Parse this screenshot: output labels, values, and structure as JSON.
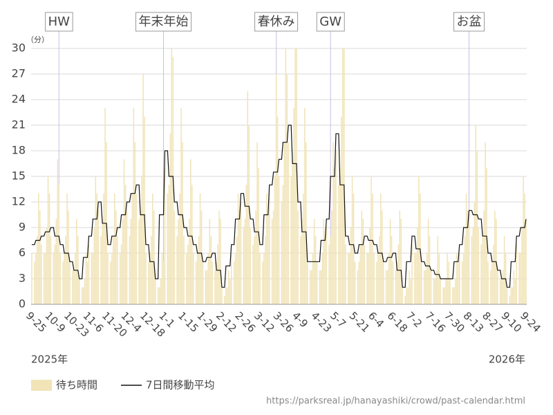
{
  "chart_data": {
    "type": "bar_line",
    "unit_label": "（分）",
    "year_start": "2025年",
    "year_end": "2026年",
    "source": "https://parksreal.jp/hanayashiki/crowd/past-calendar.html",
    "ylim": [
      0,
      30
    ],
    "yticks": [
      0,
      3,
      6,
      9,
      12,
      15,
      18,
      21,
      24,
      27,
      30
    ],
    "grid": true,
    "categories": [
      "9-25",
      null,
      null,
      null,
      null,
      null,
      null,
      null,
      null,
      null,
      null,
      null,
      null,
      null,
      "10-9",
      null,
      null,
      null,
      null,
      null,
      null,
      null,
      null,
      null,
      null,
      null,
      null,
      null,
      "10-23",
      null,
      null,
      null,
      null,
      null,
      null,
      null,
      null,
      null,
      null,
      null,
      null,
      null,
      "11-6",
      null,
      null,
      null,
      null,
      null,
      null,
      null,
      null,
      null,
      null,
      null,
      null,
      null,
      "11-20",
      null,
      null,
      null,
      null,
      null,
      null,
      null,
      null,
      null,
      null,
      null,
      null,
      null,
      "12-4",
      null,
      null,
      null,
      null,
      null,
      null,
      null,
      null,
      null,
      null,
      null,
      null,
      null,
      "12-18",
      null,
      null,
      null,
      null,
      null,
      null,
      null,
      null,
      null,
      null,
      null,
      null,
      null,
      "1-1",
      null,
      null,
      null,
      null,
      null,
      null,
      null,
      null,
      null,
      null,
      null,
      null,
      null,
      "1-15",
      null,
      null,
      null,
      null,
      null,
      null,
      null,
      null,
      null,
      null,
      null,
      null,
      null,
      "1-29",
      null,
      null,
      null,
      null,
      null,
      null,
      null,
      null,
      null,
      null,
      null,
      null,
      null,
      "2-12",
      null,
      null,
      null,
      null,
      null,
      null,
      null,
      null,
      null,
      null,
      null,
      null,
      null,
      "2-26",
      null,
      null,
      null,
      null,
      null,
      null,
      null,
      null,
      null,
      null,
      null,
      null,
      null,
      "3-12",
      null,
      null,
      null,
      null,
      null,
      null,
      null,
      null,
      null,
      null,
      null,
      null,
      null,
      "3-26",
      null,
      null,
      null,
      null,
      null,
      null,
      null,
      null,
      null,
      null,
      null,
      null,
      null,
      "4-9",
      null,
      null,
      null,
      null,
      null,
      null,
      null,
      null,
      null,
      null,
      null,
      null,
      null,
      "4-23",
      null,
      null,
      null,
      null,
      null,
      null,
      null,
      null,
      null,
      null,
      null,
      null,
      null,
      "5-7",
      null,
      null,
      null,
      null,
      null,
      null,
      null,
      null,
      null,
      null,
      null,
      null,
      null,
      "5-21",
      null,
      null,
      null,
      null,
      null,
      null,
      null,
      null,
      null,
      null,
      null,
      null,
      null,
      "6-4",
      null,
      null,
      null,
      null,
      null,
      null,
      null,
      null,
      null,
      null,
      null,
      null,
      null,
      "6-18",
      null,
      null,
      null,
      null,
      null,
      null,
      null,
      null,
      null,
      null,
      null,
      null,
      null,
      "7-2",
      null,
      null,
      null,
      null,
      null,
      null,
      null,
      null,
      null,
      null,
      null,
      null,
      null,
      "7-16",
      null,
      null,
      null,
      null,
      null,
      null,
      null,
      null,
      null,
      null,
      null,
      null,
      null,
      "7-30",
      null,
      null,
      null,
      null,
      null,
      null,
      null,
      null,
      null,
      null,
      null,
      null,
      null,
      "8-13",
      null,
      null,
      null,
      null,
      null,
      null,
      null,
      null,
      null,
      null,
      null,
      null,
      null,
      "8-27",
      null,
      null,
      null,
      null,
      null,
      null,
      null,
      null,
      null,
      null,
      null,
      null,
      null,
      "9-10",
      null,
      null,
      null,
      null,
      null,
      null,
      null,
      null,
      null,
      null,
      null,
      null,
      null,
      "9-24"
    ],
    "annotations": [
      {
        "text": "HW",
        "index": 20
      },
      {
        "text": "年末年始",
        "index": 97
      },
      {
        "text": "春休み",
        "index": 180
      },
      {
        "text": "GW",
        "index": 220
      },
      {
        "text": "お盆",
        "index": 322
      }
    ],
    "series": [
      {
        "name": "待ち時間",
        "kind": "bar",
        "color": "#f1e4b7",
        "values": [
          6,
          0,
          5,
          6,
          8,
          13,
          11,
          7,
          0,
          6,
          6,
          9,
          15,
          13,
          8,
          0,
          6,
          7,
          10,
          17,
          14,
          6,
          0,
          5,
          6,
          8,
          13,
          11,
          5,
          0,
          4,
          4,
          6,
          10,
          8,
          3,
          0,
          2,
          2,
          3,
          6,
          5,
          7,
          0,
          6,
          6,
          9,
          15,
          13,
          11,
          0,
          8,
          10,
          13,
          23,
          19,
          6,
          0,
          5,
          6,
          8,
          13,
          11,
          8,
          0,
          6,
          7,
          10,
          17,
          14,
          11,
          0,
          8,
          10,
          13,
          23,
          19,
          13,
          0,
          10,
          11,
          15,
          27,
          22,
          6,
          0,
          5,
          6,
          8,
          13,
          11,
          3,
          0,
          2,
          2,
          3,
          6,
          5,
          16,
          0,
          13,
          14,
          20,
          30,
          29,
          11,
          0,
          8,
          10,
          13,
          23,
          19,
          8,
          0,
          6,
          7,
          10,
          17,
          14,
          6,
          0,
          5,
          6,
          8,
          13,
          11,
          5,
          0,
          4,
          4,
          6,
          10,
          8,
          5,
          0,
          4,
          5,
          7,
          11,
          10,
          2,
          0,
          1,
          2,
          2,
          4,
          3,
          6,
          0,
          5,
          6,
          8,
          13,
          11,
          12,
          0,
          9,
          10,
          14,
          25,
          21,
          9,
          0,
          7,
          8,
          11,
          19,
          16,
          6,
          0,
          5,
          6,
          8,
          13,
          11,
          13,
          0,
          10,
          11,
          15,
          27,
          22,
          15,
          0,
          12,
          14,
          19,
          30,
          27,
          19,
          0,
          15,
          17,
          23,
          30,
          30,
          11,
          0,
          8,
          10,
          13,
          23,
          19,
          5,
          0,
          4,
          4,
          6,
          10,
          8,
          5,
          0,
          4,
          4,
          6,
          10,
          8,
          9,
          0,
          7,
          8,
          11,
          19,
          16,
          18,
          0,
          14,
          16,
          22,
          30,
          30,
          7,
          0,
          6,
          6,
          9,
          15,
          13,
          5,
          0,
          4,
          5,
          7,
          11,
          10,
          7,
          0,
          6,
          6,
          9,
          15,
          13,
          6,
          0,
          5,
          6,
          8,
          13,
          11,
          5,
          0,
          4,
          4,
          6,
          10,
          8,
          5,
          0,
          4,
          5,
          7,
          11,
          10,
          2,
          0,
          1,
          2,
          2,
          4,
          3,
          7,
          0,
          6,
          6,
          9,
          15,
          13,
          5,
          0,
          4,
          4,
          6,
          10,
          8,
          4,
          0,
          3,
          3,
          4,
          8,
          6,
          3,
          0,
          2,
          2,
          3,
          6,
          5,
          3,
          0,
          2,
          2,
          3,
          6,
          5,
          6,
          0,
          5,
          6,
          8,
          13,
          11,
          10,
          0,
          8,
          9,
          12,
          21,
          18,
          9,
          0,
          7,
          8,
          11,
          19,
          16,
          5,
          0,
          4,
          5,
          7,
          11,
          10,
          4,
          0,
          3,
          3,
          4,
          8,
          6,
          2,
          0,
          1,
          2,
          2,
          4,
          3,
          7,
          0,
          6,
          6,
          9,
          15,
          13,
          10
        ]
      },
      {
        "name": "7日間移動平均",
        "kind": "line",
        "color": "#111111",
        "values": [
          7,
          7,
          7,
          7.5,
          7.5,
          7.5,
          7.5,
          8,
          8,
          8,
          8.5,
          8.5,
          8.5,
          8.5,
          9,
          9,
          9,
          8,
          8,
          8,
          8,
          7,
          7,
          7,
          6,
          6,
          6,
          6,
          5,
          5,
          5,
          4,
          4,
          4,
          4,
          3,
          3,
          3,
          5.5,
          5.5,
          5.5,
          5.5,
          8,
          8,
          8,
          10,
          10,
          10,
          10,
          12,
          12,
          12,
          9.5,
          9.5,
          9.5,
          9.5,
          7,
          7,
          7,
          8,
          8,
          8,
          8,
          9,
          9,
          9,
          10.5,
          10.5,
          10.5,
          10.5,
          12,
          12,
          12,
          13,
          13,
          13,
          13,
          14,
          14,
          14,
          10.5,
          10.5,
          10.5,
          10.5,
          7,
          7,
          7,
          5,
          5,
          5,
          5,
          3,
          3,
          3,
          10.5,
          10.5,
          10.5,
          10.5,
          18,
          18,
          18,
          15,
          15,
          15,
          15,
          12,
          12,
          12,
          10.5,
          10.5,
          10.5,
          10.5,
          9,
          9,
          9,
          8,
          8,
          8,
          8,
          7,
          7,
          7,
          6,
          6,
          6,
          6,
          5,
          5,
          5,
          5.5,
          5.5,
          5.5,
          5.5,
          6,
          6,
          6,
          4,
          4,
          4,
          4,
          2,
          2,
          2,
          4.5,
          4.5,
          4.5,
          4.5,
          7,
          7,
          7,
          10,
          10,
          10,
          10,
          13,
          13,
          13,
          11.5,
          11.5,
          11.5,
          11.5,
          10,
          10,
          10,
          8.5,
          8.5,
          8.5,
          8.5,
          7,
          7,
          7,
          10.5,
          10.5,
          10.5,
          10.5,
          14,
          14,
          14,
          15.5,
          15.5,
          15.5,
          15.5,
          17,
          17,
          17,
          19,
          19,
          19,
          19,
          21,
          21,
          21,
          16.5,
          16.5,
          16.5,
          16.5,
          12,
          12,
          12,
          8.5,
          8.5,
          8.5,
          8.5,
          5,
          5,
          5,
          5,
          5,
          5,
          5,
          5,
          5,
          5,
          7.5,
          7.5,
          7.5,
          7.5,
          10,
          10,
          10,
          15,
          15,
          15,
          15,
          20,
          20,
          20,
          14,
          14,
          14,
          14,
          8,
          8,
          8,
          7,
          7,
          7,
          7,
          6,
          6,
          6,
          7,
          7,
          7,
          7,
          8,
          8,
          8,
          7.5,
          7.5,
          7.5,
          7.5,
          7,
          7,
          7,
          6,
          6,
          6,
          6,
          5,
          5,
          5,
          5.5,
          5.5,
          5.5,
          5.5,
          6,
          6,
          6,
          4,
          4,
          4,
          4,
          2,
          2,
          2,
          5,
          5,
          5,
          5,
          8,
          8,
          8,
          6.5,
          6.5,
          6.5,
          6.5,
          5,
          5,
          5,
          4.5,
          4.5,
          4.5,
          4.5,
          4,
          4,
          4,
          3.5,
          3.5,
          3.5,
          3.5,
          3,
          3,
          3,
          3,
          3,
          3,
          3,
          3,
          3,
          3,
          5,
          5,
          5,
          5,
          7,
          7,
          7,
          9,
          9,
          9,
          9,
          11,
          11,
          11,
          10.5,
          10.5,
          10.5,
          10.5,
          10,
          10,
          10,
          8,
          8,
          8,
          8,
          6,
          6,
          6,
          5,
          5,
          5,
          5,
          4,
          4,
          4,
          3,
          3,
          3,
          3,
          2,
          2,
          2,
          5,
          5,
          5,
          5,
          8,
          8,
          8,
          9,
          9,
          9,
          9,
          10
        ]
      }
    ]
  }
}
